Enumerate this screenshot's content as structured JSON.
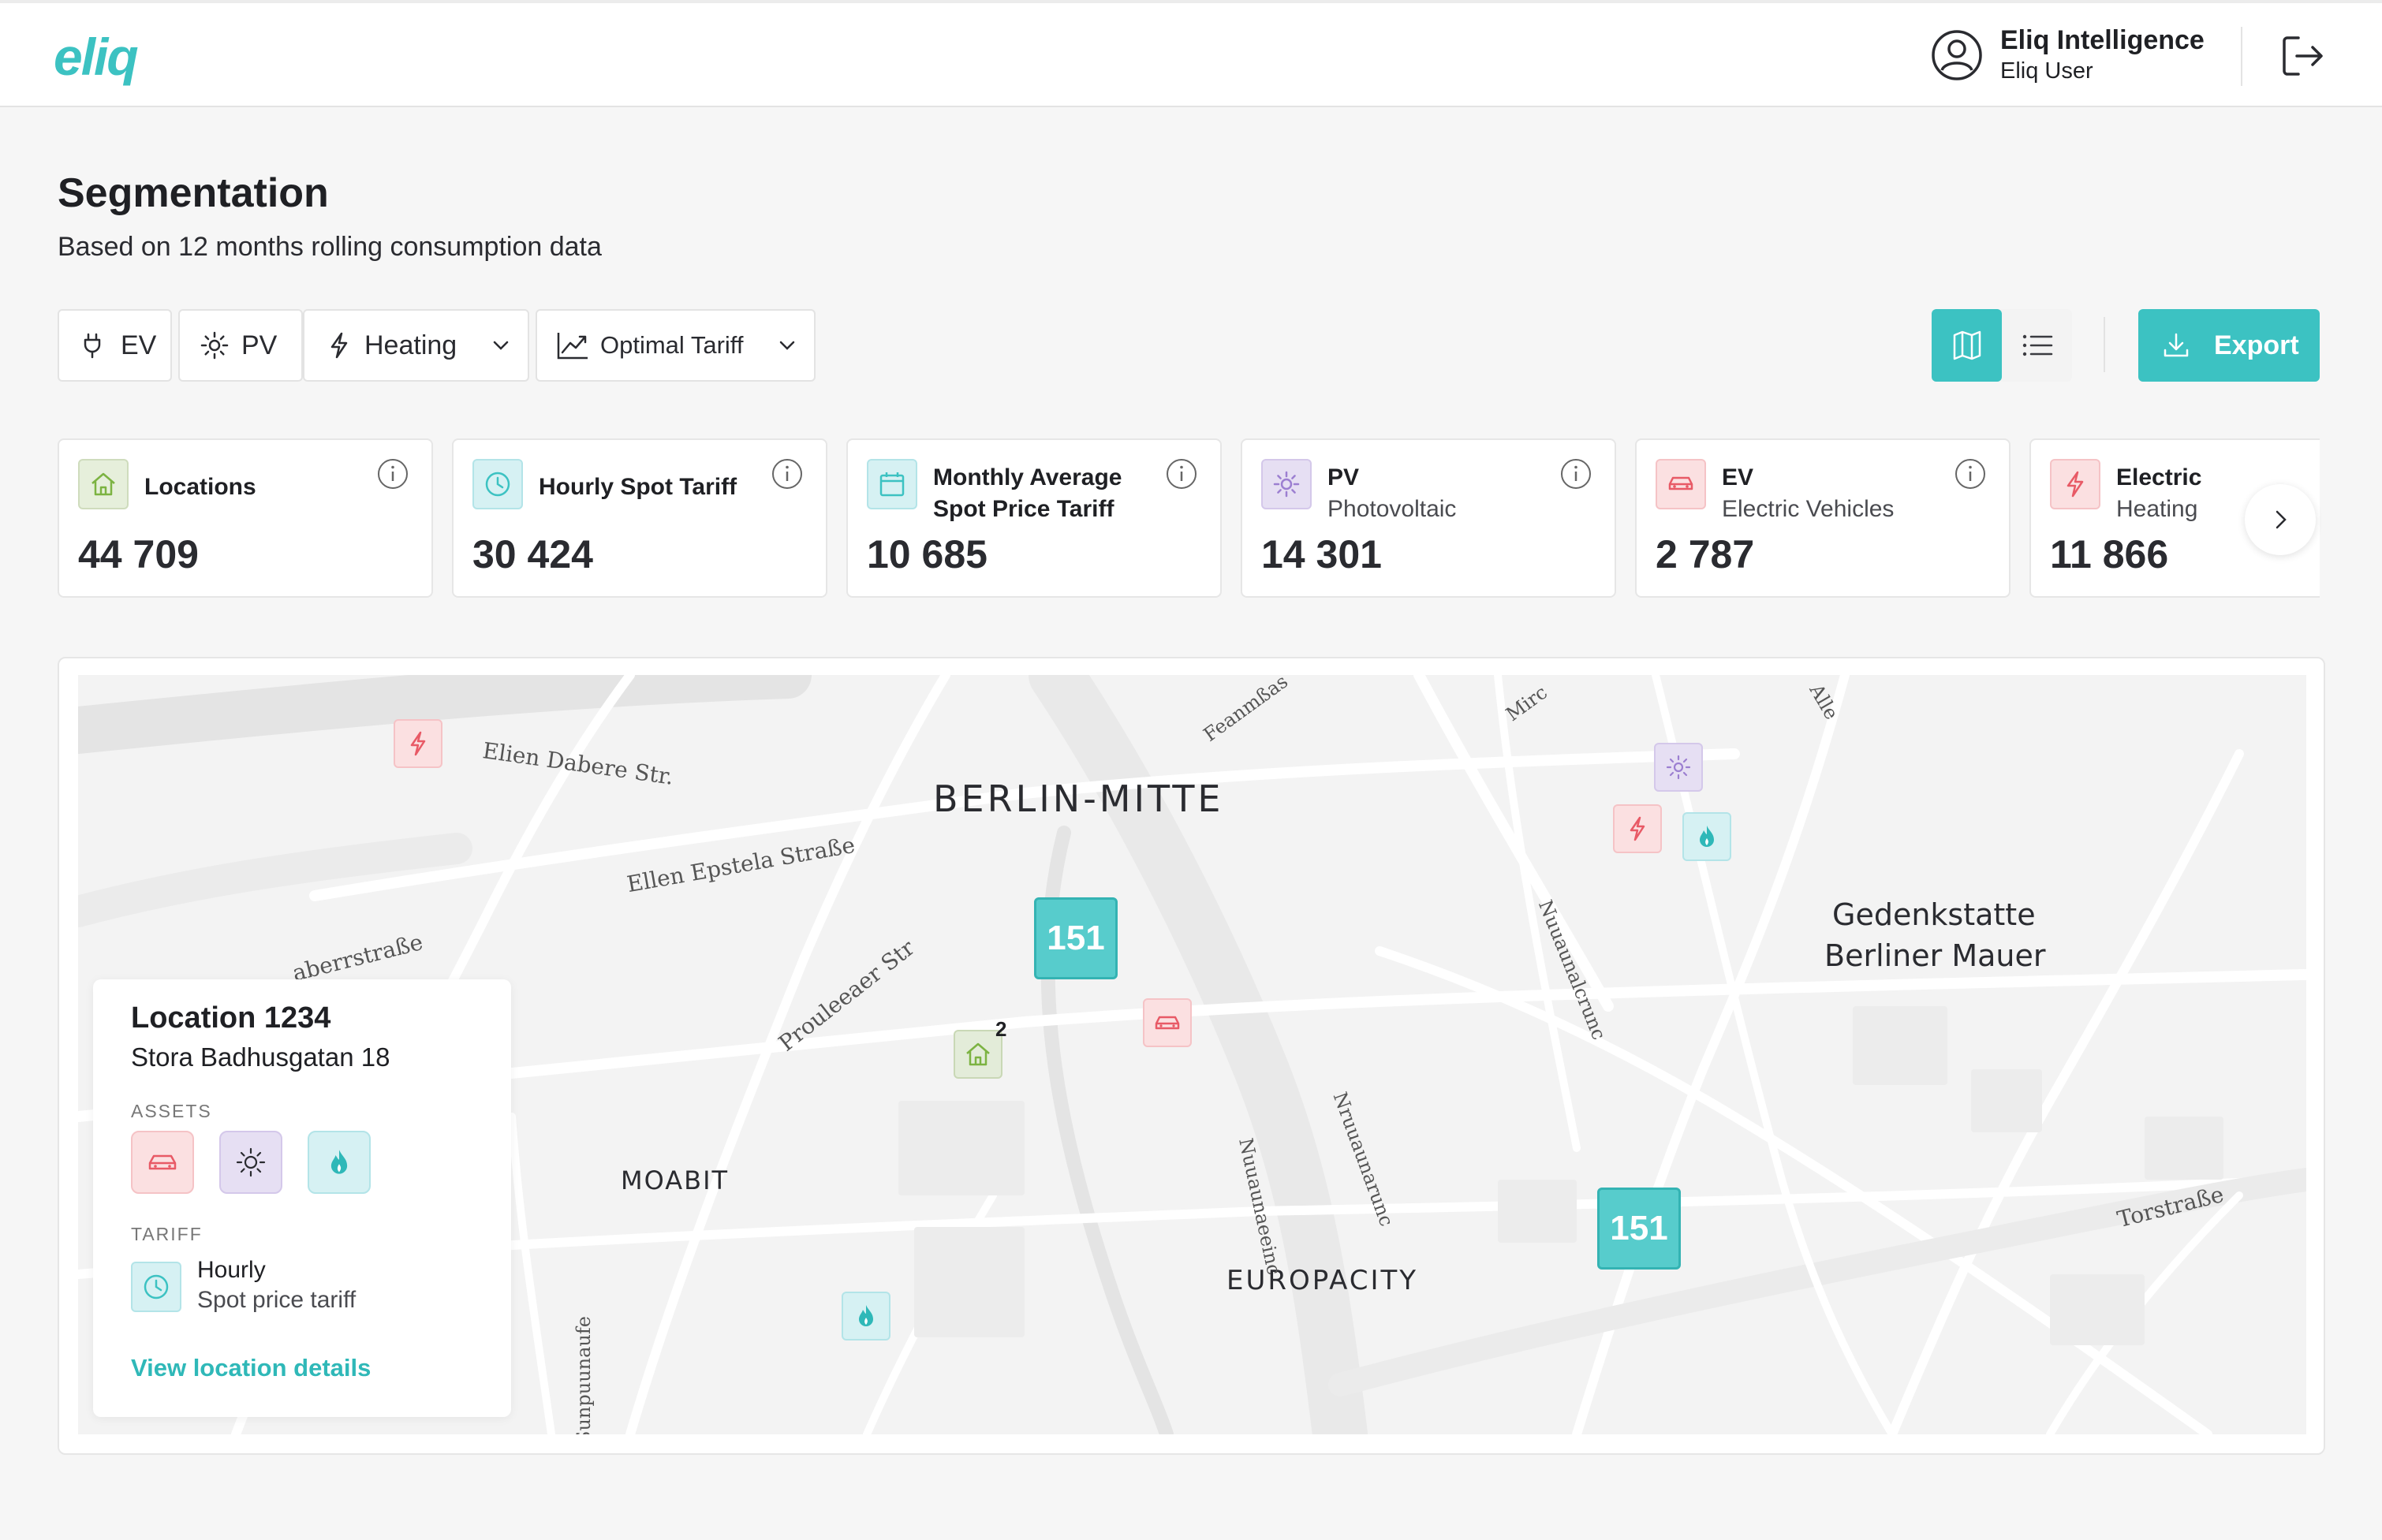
{
  "header": {
    "logo": "eliq",
    "user_name": "Eliq Intelligence",
    "user_role": "Eliq User",
    "avatar_icon": "user-circle-icon",
    "logout_icon": "logout-icon"
  },
  "page": {
    "title": "Segmentation",
    "subtitle": "Based on 12 months rolling consumption data"
  },
  "filters": {
    "ev": "EV",
    "pv": "PV",
    "heating": "Heating",
    "tariff": "Optimal Tariff"
  },
  "toolbar": {
    "export": "Export",
    "active_view": "map"
  },
  "cards": [
    {
      "label": "Locations",
      "sub": "",
      "value": "44 709",
      "icon": "home-icon",
      "color": "#8bc34a"
    },
    {
      "label": "Hourly Spot Tariff",
      "sub": "",
      "value": "30 424",
      "icon": "clock-icon",
      "color": "#3cc2c2"
    },
    {
      "label": "Monthly Average",
      "sub": "Spot Price Tariff",
      "value": "10 685",
      "icon": "calendar-icon",
      "color": "#3cc2c2"
    },
    {
      "label": "PV",
      "sub": "Photovoltaic",
      "value": "14 301",
      "icon": "sun-icon",
      "color": "#9c7fd1"
    },
    {
      "label": "EV",
      "sub": "Electric Vehicles",
      "value": "2 787",
      "icon": "car-icon",
      "color": "#e85a66"
    },
    {
      "label": "Electric",
      "sub": "Heating",
      "value": "11 866",
      "icon": "bolt-icon",
      "color": "#e85a66"
    }
  ],
  "map": {
    "districts": {
      "berlin_mitte": "BERLIN-MITTE",
      "moabit": "MOABIT",
      "europacity": "EUROPACITY",
      "gedenk1": "Gedenkstatte",
      "gedenk2": "Berliner Mauer"
    },
    "streets": {
      "s1": "Elien Dabere Str.",
      "s2": "Ellen Epstela Straße",
      "s3": "aberrstraße",
      "s4": "Prouleeaer Str",
      "s5": "Torstraße",
      "s6": "Feanmßas",
      "s7": "Mirc",
      "s8": "Alle",
      "s9": "Nuuaunalcrunc",
      "s10": "Nuuaunaeeinc",
      "s11": "Nruuaunarunc",
      "s12": "Sunpuunaufe"
    },
    "clusters": [
      "151",
      "151"
    ],
    "pin_badge": "2"
  },
  "location": {
    "title": "Location 1234",
    "address": "Stora Badhusgatan 18",
    "assets_label": "ASSETS",
    "tariff_label": "TARIFF",
    "tariff_line1": "Hourly",
    "tariff_line2": "Spot price tariff",
    "link": "View location details"
  }
}
